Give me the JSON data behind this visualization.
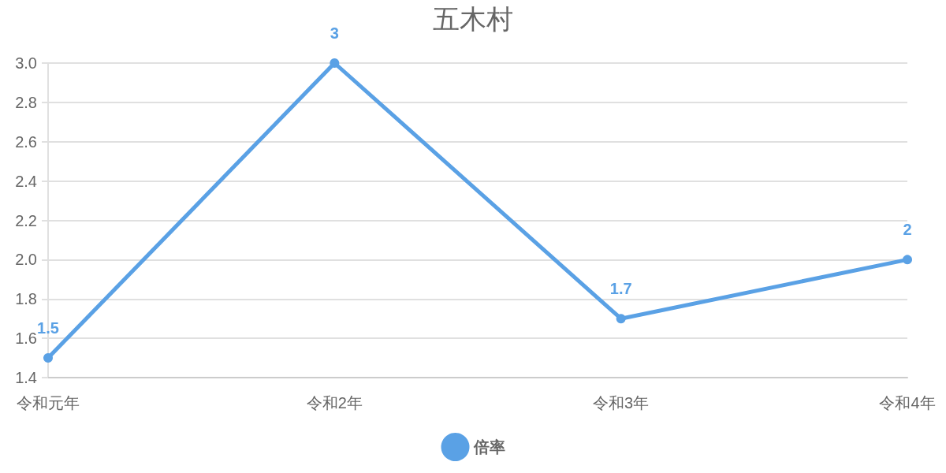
{
  "chart_data": {
    "type": "line",
    "title": "五木村",
    "categories": [
      "令和元年",
      "令和2年",
      "令和3年",
      "令和4年"
    ],
    "series": [
      {
        "name": "倍率",
        "color": "#5aa1e5",
        "values": [
          1.5,
          3,
          1.7,
          2
        ]
      }
    ],
    "ylim": [
      1.4,
      3.0
    ],
    "yticks": [
      {
        "value": 1.4,
        "label": "1.4"
      },
      {
        "value": 1.6,
        "label": "1.6"
      },
      {
        "value": 1.8,
        "label": "1.8"
      },
      {
        "value": 2.0,
        "label": "2.0"
      },
      {
        "value": 2.2,
        "label": "2.2"
      },
      {
        "value": 2.4,
        "label": "2.4"
      },
      {
        "value": 2.6,
        "label": "2.6"
      },
      {
        "value": 2.8,
        "label": "2.8"
      },
      {
        "value": 3.0,
        "label": "3.0"
      }
    ],
    "grid": "y",
    "legend": "bottom",
    "marker": "circle",
    "line_style": "solid",
    "data_labels": true
  }
}
